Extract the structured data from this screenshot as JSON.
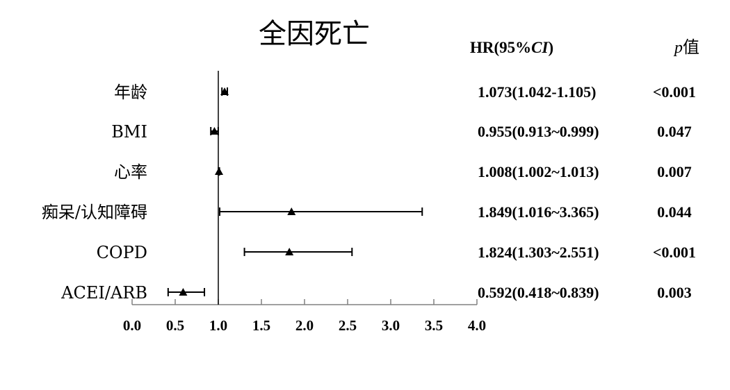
{
  "chart_data": {
    "type": "forest",
    "title": "全因死亡",
    "xlim": [
      0.0,
      4.0
    ],
    "xticks": [
      "0.0",
      "0.5",
      "1.0",
      "1.5",
      "2.0",
      "2.5",
      "3.0",
      "3.5",
      "4.0"
    ],
    "reference_line": 1.0,
    "marker": "triangle",
    "columns": {
      "hr": "HR(95%CI)",
      "hr_prefix": "HR(95%",
      "hr_italic": "CI",
      "hr_suffix": ")",
      "p_italic": "p",
      "p_suffix": "值"
    },
    "rows": [
      {
        "label": "年龄",
        "hr": 1.073,
        "lower": 1.042,
        "upper": 1.105,
        "hr_text": "1.073(1.042-1.105)",
        "p": "<0.001"
      },
      {
        "label": "BMI",
        "hr": 0.955,
        "lower": 0.913,
        "upper": 0.999,
        "hr_text": "0.955(0.913~0.999)",
        "p": "0.047"
      },
      {
        "label": "心率",
        "hr": 1.008,
        "lower": 1.002,
        "upper": 1.013,
        "hr_text": "1.008(1.002~1.013)",
        "p": "0.007"
      },
      {
        "label": "痴呆/认知障碍",
        "hr": 1.849,
        "lower": 1.016,
        "upper": 3.365,
        "hr_text": "1.849(1.016~3.365)",
        "p": "0.044"
      },
      {
        "label": "COPD",
        "hr": 1.824,
        "lower": 1.303,
        "upper": 2.551,
        "hr_text": "1.824(1.303~2.551)",
        "p": "<0.001"
      },
      {
        "label": "ACEI/ARB",
        "hr": 0.592,
        "lower": 0.418,
        "upper": 0.839,
        "hr_text": "0.592(0.418~0.839)",
        "p": "0.003"
      }
    ],
    "colors": {
      "ink": "#000000",
      "axis": "#808080"
    }
  }
}
